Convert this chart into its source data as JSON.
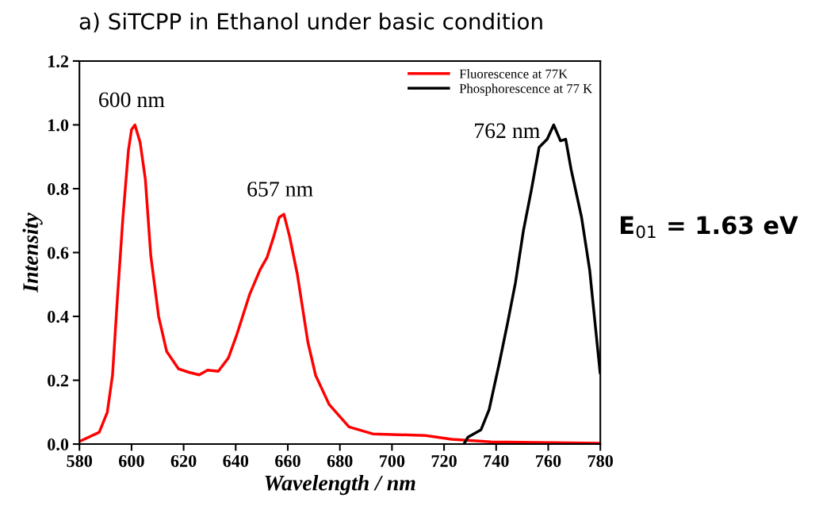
{
  "chart_data": {
    "type": "line",
    "title": "a) SiTCPP in Ethanol under basic condition",
    "xlabel": "Wavelength / nm",
    "ylabel": "Intensity",
    "xlim": [
      580,
      780
    ],
    "xticks": [
      580,
      600,
      620,
      640,
      660,
      680,
      700,
      720,
      740,
      760,
      780
    ],
    "ylim": [
      0,
      1.2
    ],
    "yticks": [
      {
        "value": 0,
        "label": "0.0"
      },
      {
        "value": 0.2,
        "label": "0.2"
      },
      {
        "value": 0.4,
        "label": "0.4"
      },
      {
        "value": 0.6,
        "label": "0.6"
      },
      {
        "value": 0.8,
        "label": "0.8"
      },
      {
        "value": 1.0,
        "label": "1.0"
      },
      {
        "value": 1.2,
        "label": "1.2"
      }
    ],
    "grid": false,
    "legend": "top right",
    "marker": "none",
    "line_style": "solid",
    "series": [
      {
        "name": "Fluorescence at 77K",
        "color": "#ff0000",
        "x": [
          580.5,
          587.6,
          590.7,
          592.7,
          594.6,
          596.7,
          598.8,
          600,
          601.3,
          603.3,
          605.3,
          607.4,
          610.4,
          613.5,
          618,
          622,
          626,
          629.2,
          633.3,
          637.2,
          640.3,
          645.4,
          649.4,
          652,
          654.6,
          656.7,
          658.5,
          660.7,
          663.7,
          667.7,
          670.7,
          675.9,
          683.5,
          692.6,
          712.9,
          723,
          738,
          780
        ],
        "values": [
          0.01,
          0.037,
          0.1,
          0.216,
          0.46,
          0.71,
          0.92,
          0.985,
          1.0,
          0.945,
          0.83,
          0.59,
          0.4,
          0.29,
          0.236,
          0.225,
          0.217,
          0.232,
          0.228,
          0.27,
          0.34,
          0.47,
          0.547,
          0.584,
          0.65,
          0.71,
          0.72,
          0.65,
          0.53,
          0.32,
          0.215,
          0.124,
          0.054,
          0.032,
          0.027,
          0.015,
          0.007,
          0.003
        ]
      },
      {
        "name": "Phosphorescence at 77 K",
        "color": "#000000",
        "x": [
          727.6,
          729.2,
          734.2,
          737.3,
          741.3,
          744.4,
          747.4,
          750.5,
          753.5,
          756.5,
          759.6,
          762.1,
          764.7,
          766.7,
          768.8,
          772.8,
          775.9,
          779.9
        ],
        "values": [
          0.0,
          0.022,
          0.045,
          0.108,
          0.257,
          0.38,
          0.505,
          0.67,
          0.795,
          0.93,
          0.955,
          1.0,
          0.95,
          0.955,
          0.86,
          0.71,
          0.546,
          0.224
        ]
      }
    ],
    "annotations": [
      {
        "text": "600 nm",
        "x": 600,
        "y": 1.0
      },
      {
        "text": "657 nm",
        "x": 657,
        "y": 0.72
      },
      {
        "text": "762 nm",
        "x": 762,
        "y": 1.0
      },
      "E$_{01}$ = 1.63 eV"
    ]
  }
}
